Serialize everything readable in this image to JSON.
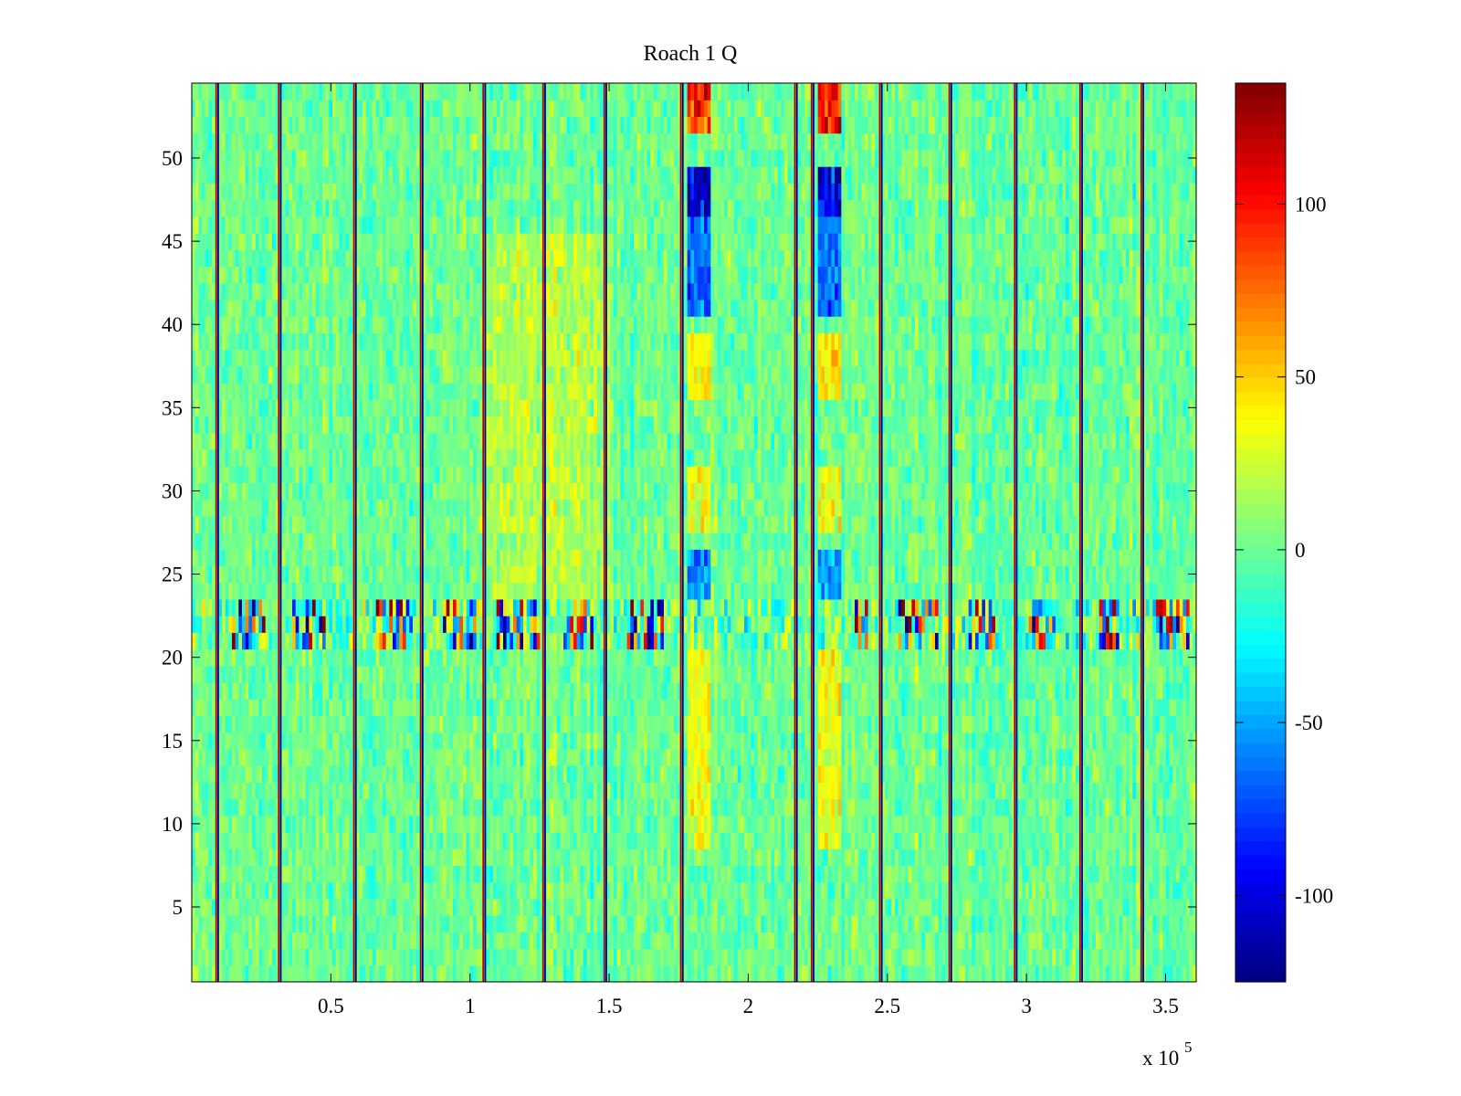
{
  "chart_data": {
    "type": "heatmap",
    "title": "Roach 1 Q",
    "xlabel": "",
    "ylabel": "",
    "x_exponent_label": "x 10",
    "x_exponent_power": "5",
    "xlim": [
      0,
      361000
    ],
    "ylim": [
      0.5,
      54.5
    ],
    "rows": 54,
    "x_ticks": [
      {
        "value": 50000,
        "label": "0.5"
      },
      {
        "value": 100000,
        "label": "1"
      },
      {
        "value": 150000,
        "label": "1.5"
      },
      {
        "value": 200000,
        "label": "2"
      },
      {
        "value": 250000,
        "label": "2.5"
      },
      {
        "value": 300000,
        "label": "3"
      },
      {
        "value": 350000,
        "label": "3.5"
      }
    ],
    "y_ticks": [
      {
        "value": 5,
        "label": "5"
      },
      {
        "value": 10,
        "label": "10"
      },
      {
        "value": 15,
        "label": "15"
      },
      {
        "value": 20,
        "label": "20"
      },
      {
        "value": 25,
        "label": "25"
      },
      {
        "value": 30,
        "label": "30"
      },
      {
        "value": 35,
        "label": "35"
      },
      {
        "value": 40,
        "label": "40"
      },
      {
        "value": 45,
        "label": "45"
      },
      {
        "value": 50,
        "label": "50"
      }
    ],
    "colorbar": {
      "colormap": "jet",
      "clim": [
        -125,
        135
      ],
      "ticks": [
        {
          "value": -100,
          "label": "-100"
        },
        {
          "value": -50,
          "label": "-50"
        },
        {
          "value": 0,
          "label": "0"
        },
        {
          "value": 50,
          "label": "50"
        },
        {
          "value": 100,
          "label": "100"
        }
      ]
    },
    "baseline_value": 0,
    "noise_amplitude": 14,
    "vertical_stripes": [
      {
        "x": 9000
      },
      {
        "x": 31500
      },
      {
        "x": 58500
      },
      {
        "x": 82500
      },
      {
        "x": 105000
      },
      {
        "x": 126500
      },
      {
        "x": 148500
      },
      {
        "x": 176000
      },
      {
        "x": 217000
      },
      {
        "x": 223000
      },
      {
        "x": 247500
      },
      {
        "x": 272500
      },
      {
        "x": 296000
      },
      {
        "x": 319500
      },
      {
        "x": 341500
      }
    ],
    "vertical_stripe_value": 120,
    "hot_columns": [
      {
        "x_start": 178000,
        "x_end": 187000
      },
      {
        "x_start": 225000,
        "x_end": 234000
      }
    ],
    "hot_column_rows": [
      {
        "row_start": 52,
        "row_end": 54,
        "value": 100
      },
      {
        "row_start": 47,
        "row_end": 49,
        "value": -105
      },
      {
        "row_start": 41,
        "row_end": 46,
        "value": -65
      },
      {
        "row_start": 36,
        "row_end": 39,
        "value": 45
      },
      {
        "row_start": 28,
        "row_end": 31,
        "value": 35
      },
      {
        "row_start": 24,
        "row_end": 26,
        "value": -55
      },
      {
        "row_start": 9,
        "row_end": 20,
        "value": 35
      }
    ],
    "noisy_band": {
      "row_start": 21,
      "row_end": 23,
      "amplitude": 110,
      "clusters": [
        {
          "x_start": 14000,
          "x_end": 27000
        },
        {
          "x_start": 36000,
          "x_end": 48000
        },
        {
          "x_start": 66000,
          "x_end": 80000
        },
        {
          "x_start": 90000,
          "x_end": 102000
        },
        {
          "x_start": 110000,
          "x_end": 125000
        },
        {
          "x_start": 133000,
          "x_end": 145000
        },
        {
          "x_start": 155000,
          "x_end": 170000
        },
        {
          "x_start": 238000,
          "x_end": 243000
        },
        {
          "x_start": 254000,
          "x_end": 268000
        },
        {
          "x_start": 279000,
          "x_end": 290000
        },
        {
          "x_start": 301000,
          "x_end": 310000
        },
        {
          "x_start": 326000,
          "x_end": 335000
        },
        {
          "x_start": 346000,
          "x_end": 358000
        }
      ]
    },
    "warm_regions": [
      {
        "x_start": 105000,
        "x_end": 150000,
        "row_start": 24,
        "row_end": 45,
        "value": 18
      }
    ],
    "grid": false,
    "legend": "none"
  }
}
